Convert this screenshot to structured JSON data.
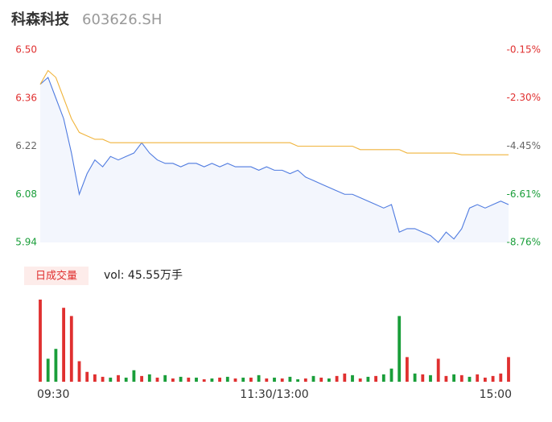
{
  "chart_data": [
    {
      "type": "line",
      "title": "科森科技",
      "subtitle": "603626.SH",
      "x": [
        0,
        4,
        8,
        12,
        16,
        20,
        24,
        28,
        32,
        36,
        40,
        44,
        48,
        52,
        56,
        60,
        64,
        68,
        72,
        76,
        80,
        84,
        88,
        92,
        96,
        100,
        104,
        108,
        112,
        116,
        120,
        124,
        128,
        132,
        136,
        140,
        144,
        148,
        152,
        156,
        160,
        164,
        168,
        172,
        176,
        180,
        184,
        188,
        192,
        196,
        200,
        204,
        208,
        212,
        216,
        220,
        224,
        228,
        232,
        236,
        240
      ],
      "xlim": [
        0,
        240
      ],
      "xticks": [
        {
          "value": 0,
          "label": "09:30"
        },
        {
          "value": 120,
          "label": "11:30/13:00"
        },
        {
          "value": 240,
          "label": "15:00"
        }
      ],
      "series": [
        {
          "color": "#4f7be0",
          "values": [
            6.4,
            6.42,
            6.36,
            6.3,
            6.2,
            6.08,
            6.14,
            6.18,
            6.16,
            6.19,
            6.18,
            6.19,
            6.2,
            6.23,
            6.2,
            6.18,
            6.17,
            6.17,
            6.16,
            6.17,
            6.17,
            6.16,
            6.17,
            6.16,
            6.17,
            6.16,
            6.16,
            6.16,
            6.15,
            6.16,
            6.15,
            6.15,
            6.14,
            6.15,
            6.13,
            6.12,
            6.11,
            6.1,
            6.09,
            6.08,
            6.08,
            6.07,
            6.06,
            6.05,
            6.04,
            6.05,
            5.97,
            5.98,
            5.98,
            5.97,
            5.96,
            5.94,
            5.97,
            5.95,
            5.98,
            6.04,
            6.05,
            6.04,
            6.05,
            6.06,
            6.05
          ]
        },
        {
          "color": "#f0b43c",
          "values": [
            6.4,
            6.44,
            6.42,
            6.36,
            6.3,
            6.26,
            6.25,
            6.24,
            6.24,
            6.23,
            6.23,
            6.23,
            6.23,
            6.23,
            6.23,
            6.23,
            6.23,
            6.23,
            6.23,
            6.23,
            6.23,
            6.23,
            6.23,
            6.23,
            6.23,
            6.23,
            6.23,
            6.23,
            6.23,
            6.23,
            6.23,
            6.23,
            6.23,
            6.22,
            6.22,
            6.22,
            6.22,
            6.22,
            6.22,
            6.22,
            6.22,
            6.21,
            6.21,
            6.21,
            6.21,
            6.21,
            6.21,
            6.2,
            6.2,
            6.2,
            6.2,
            6.2,
            6.2,
            6.2,
            6.195,
            6.195,
            6.195,
            6.195,
            6.195,
            6.195,
            6.195
          ]
        }
      ],
      "fill": "#f3f6fd",
      "ylim": [
        5.94,
        6.5
      ],
      "yticks": [
        {
          "value": 6.5,
          "label": "6.50"
        },
        6.36,
        6.22,
        6.08,
        5.94
      ],
      "ytick_colors": [
        "#e03030",
        "#e03030",
        "#666666",
        "#1a9e3a",
        "#1a9e3a"
      ],
      "y2lim": [
        -8.76,
        -0.15
      ],
      "y2ticks": [
        {
          "value": -0.15,
          "label": "-0.15%"
        },
        {
          "value": -2.3,
          "label": "-2.30%"
        },
        {
          "value": -4.45,
          "label": "-4.45%"
        },
        {
          "value": -6.61,
          "label": "-6.61%"
        },
        {
          "value": -8.76,
          "label": "-8.76%"
        }
      ],
      "grid": false
    },
    {
      "type": "bar",
      "title": "日成交量",
      "annotation": "vol: 45.55万手",
      "x": [
        0,
        4,
        8,
        12,
        16,
        20,
        24,
        28,
        32,
        36,
        40,
        44,
        48,
        52,
        56,
        60,
        64,
        68,
        72,
        76,
        80,
        84,
        88,
        92,
        96,
        100,
        104,
        108,
        112,
        116,
        120,
        124,
        128,
        132,
        136,
        140,
        144,
        148,
        152,
        156,
        160,
        164,
        168,
        172,
        176,
        180,
        184,
        188,
        192,
        196,
        200,
        204,
        208,
        212,
        216,
        220,
        224,
        228,
        232,
        236,
        240
      ],
      "xlim": [
        0,
        240
      ],
      "values": [
        100,
        28,
        40,
        90,
        80,
        25,
        12,
        9,
        6,
        5,
        8,
        5,
        14,
        7,
        9,
        5,
        8,
        4,
        6,
        5,
        5,
        3,
        4,
        5,
        6,
        4,
        5,
        5,
        8,
        4,
        5,
        4,
        6,
        3,
        4,
        7,
        5,
        4,
        7,
        10,
        8,
        4,
        6,
        7,
        9,
        16,
        80,
        30,
        10,
        9,
        8,
        28,
        7,
        9,
        8,
        6,
        9,
        5,
        7,
        10,
        30
      ],
      "colors": [
        "#e03030",
        "#1a9e3a",
        "#1a9e3a",
        "#e03030",
        "#e03030",
        "#e03030",
        "#e03030",
        "#e03030",
        "#e03030",
        "#1a9e3a",
        "#e03030",
        "#1a9e3a",
        "#1a9e3a",
        "#e03030",
        "#1a9e3a",
        "#e03030",
        "#1a9e3a",
        "#e03030",
        "#1a9e3a",
        "#e03030",
        "#1a9e3a",
        "#e03030",
        "#1a9e3a",
        "#e03030",
        "#1a9e3a",
        "#e03030",
        "#1a9e3a",
        "#e03030",
        "#1a9e3a",
        "#e03030",
        "#1a9e3a",
        "#e03030",
        "#1a9e3a",
        "#1a9e3a",
        "#e03030",
        "#1a9e3a",
        "#e03030",
        "#1a9e3a",
        "#e03030",
        "#e03030",
        "#1a9e3a",
        "#e03030",
        "#1a9e3a",
        "#e03030",
        "#1a9e3a",
        "#1a9e3a",
        "#1a9e3a",
        "#e03030",
        "#1a9e3a",
        "#e03030",
        "#1a9e3a",
        "#e03030",
        "#e03030",
        "#1a9e3a",
        "#e03030",
        "#1a9e3a",
        "#e03030",
        "#e03030",
        "#e03030",
        "#e03030",
        "#e03030"
      ],
      "ylim": [
        0,
        100
      ]
    }
  ]
}
